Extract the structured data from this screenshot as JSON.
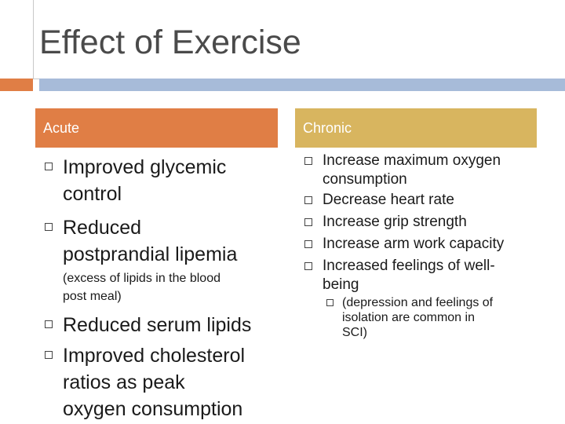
{
  "slide": {
    "title": "Effect of Exercise",
    "colors": {
      "orange": "#e07e45",
      "blue": "#a7bbd9",
      "gold": "#d8b55f"
    },
    "bullet_icon": "checkbox-square-icon"
  },
  "acute": {
    "header": "Acute",
    "item1": {
      "line1": "Improved glycemic",
      "line2": "control"
    },
    "item2": {
      "line1": "Reduced",
      "line2": "postprandial lipemia"
    },
    "note": {
      "line1": "(excess of lipids in the blood",
      "line2": "post meal)"
    },
    "item3": {
      "line1": "Reduced serum lipids"
    },
    "item4": {
      "line1": "Improved cholesterol",
      "line2": "ratios as peak",
      "line3": "oxygen consumption"
    }
  },
  "chronic": {
    "header": "Chronic",
    "item1": {
      "line1": "Increase maximum oxygen",
      "line2": "consumption"
    },
    "item2": {
      "line1": "Decrease heart rate"
    },
    "item3": {
      "line1": "Increase grip strength"
    },
    "item4": {
      "line1": "Increase arm work capacity"
    },
    "item5": {
      "line1": "Increased feelings of well-",
      "line2": "being"
    },
    "sub": {
      "line1": "(depression and feelings of",
      "line2": "isolation are common in",
      "line3": "SCI)"
    }
  }
}
